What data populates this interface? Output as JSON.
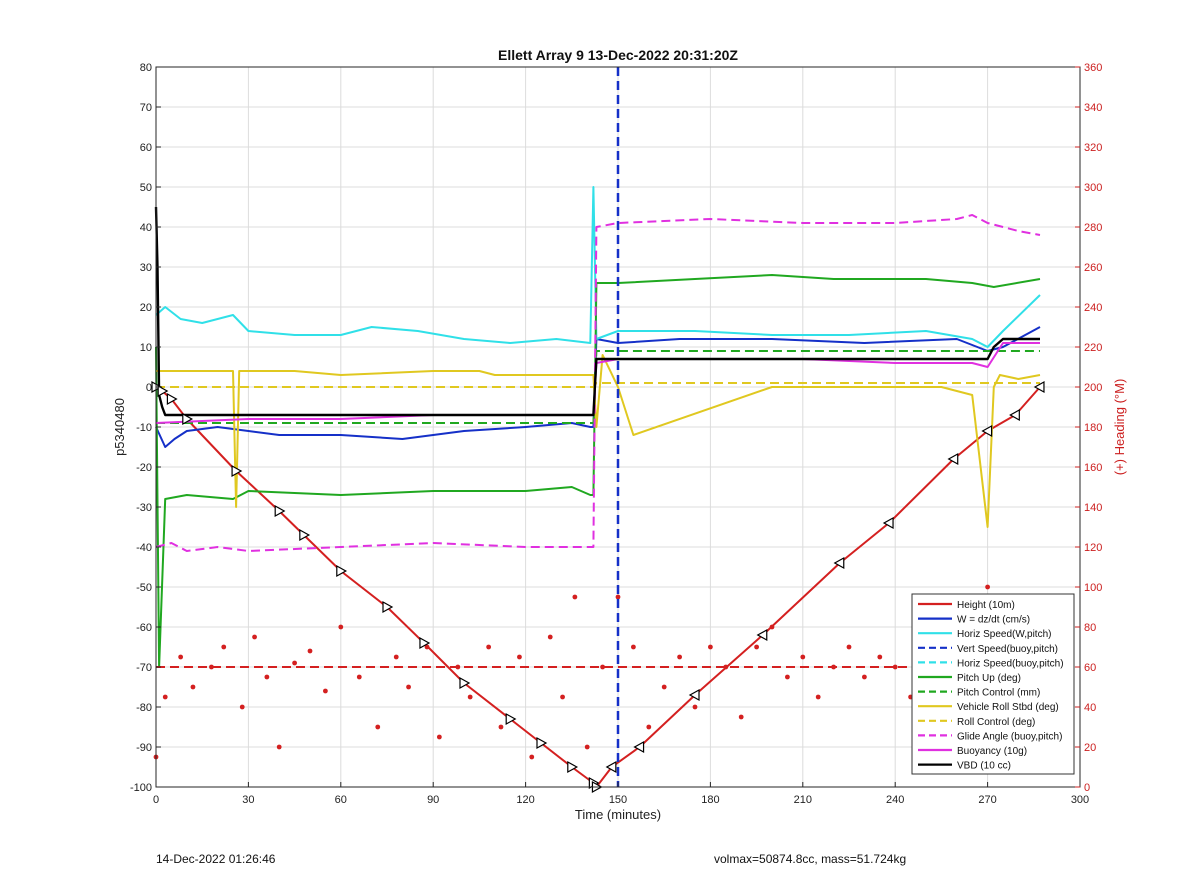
{
  "chart_data": {
    "type": "line",
    "title": "Ellett Array 9 13-Dec-2022 20:31:20Z",
    "xlabel": "Time (minutes)",
    "ylabel_left": "p5340480",
    "ylabel_right": "(+) Heading (°M)",
    "xlim": [
      0,
      300
    ],
    "ylim_left": [
      -100,
      80
    ],
    "ylim_right": [
      0,
      360
    ],
    "x_ticks": [
      "0",
      "30",
      "60",
      "90",
      "120",
      "150",
      "180",
      "210",
      "240",
      "270",
      "300"
    ],
    "y_left_ticks": [
      "80",
      "70",
      "60",
      "50",
      "40",
      "30",
      "20",
      "10",
      "0",
      "-10",
      "-20",
      "-30",
      "-40",
      "-50",
      "-60",
      "-70",
      "-80",
      "-90",
      "-100"
    ],
    "y_right_ticks": [
      "360",
      "340",
      "320",
      "300",
      "280",
      "260",
      "240",
      "220",
      "200",
      "180",
      "160",
      "140",
      "120",
      "100",
      "80",
      "60",
      "40",
      "20",
      "0"
    ],
    "grid": true,
    "legend_position": "bottom-right",
    "colors": {
      "height": "#d42020",
      "w": "#1530c8",
      "horz_speed": "#30e0e8",
      "pitch_up": "#20a820",
      "roll": "#e0c820",
      "glide": "#e030e0",
      "buoyancy": "#e030e0",
      "vbd": "#000000",
      "heading": "#d42020",
      "right_axis": "#cc2020"
    },
    "series": [
      {
        "name": "Height (10m)",
        "style": "line",
        "color": "#d42020",
        "width": 2,
        "x": [
          0,
          2,
          5,
          10,
          26,
          40,
          48,
          60,
          75,
          87,
          100,
          115,
          125,
          135,
          142,
          143,
          148,
          157,
          175,
          197,
          222,
          238,
          259,
          270,
          279,
          287
        ],
        "y": [
          0,
          -1,
          -3,
          -8,
          -21,
          -31,
          -37,
          -46,
          -55,
          -64,
          -74,
          -83,
          -89,
          -95,
          -99,
          -100,
          -95,
          -90,
          -77,
          -62,
          -44,
          -34,
          -18,
          -11,
          -7,
          0
        ]
      },
      {
        "name": "W = dz/dt (cm/s)",
        "style": "line",
        "color": "#1530c8",
        "width": 2,
        "x": [
          0,
          3,
          6,
          10,
          20,
          30,
          40,
          60,
          80,
          100,
          120,
          135,
          141,
          142,
          143,
          150,
          170,
          200,
          230,
          260,
          270,
          275,
          287
        ],
        "y": [
          -10,
          -15,
          -13,
          -11,
          -10,
          -11,
          -12,
          -12,
          -13,
          -11,
          -10,
          -9,
          -10,
          -10,
          12,
          11,
          12,
          12,
          11,
          12,
          9,
          10,
          15
        ]
      },
      {
        "name": "Horiz Speed(W,pitch)",
        "style": "line",
        "color": "#30e0e8",
        "width": 2,
        "x": [
          0,
          3,
          8,
          15,
          25,
          30,
          45,
          60,
          70,
          85,
          100,
          115,
          130,
          141,
          142,
          143,
          150,
          175,
          200,
          225,
          250,
          265,
          270,
          275,
          287
        ],
        "y": [
          18,
          20,
          17,
          16,
          18,
          14,
          13,
          13,
          15,
          14,
          12,
          11,
          12,
          11,
          50,
          12,
          14,
          14,
          13,
          13,
          14,
          12,
          10,
          14,
          23
        ]
      },
      {
        "name": "Pitch Up (deg)",
        "style": "line",
        "color": "#20a820",
        "width": 2,
        "x": [
          0,
          1,
          3,
          10,
          25,
          30,
          60,
          90,
          120,
          135,
          141,
          142,
          143,
          150,
          175,
          200,
          220,
          250,
          265,
          272,
          287
        ],
        "y": [
          10,
          -70,
          -28,
          -27,
          -28,
          -26,
          -27,
          -26,
          -26,
          -25,
          -27,
          -27,
          26,
          26,
          27,
          28,
          27,
          27,
          26,
          25,
          27
        ]
      },
      {
        "name": "Pitch Control (mm)",
        "style": "dashed",
        "color": "#20a820",
        "width": 2,
        "x": [
          0,
          141,
          142,
          143,
          287
        ],
        "y": [
          -9,
          -9,
          -9,
          9,
          9
        ]
      },
      {
        "name": "Vehicle Roll Stbd (deg)",
        "style": "line",
        "color": "#e0c820",
        "width": 2,
        "x": [
          0,
          5,
          25,
          26,
          27,
          45,
          60,
          90,
          105,
          110,
          141,
          142,
          143,
          145,
          150,
          155,
          200,
          222,
          255,
          265,
          270,
          272,
          274,
          280,
          287
        ],
        "y": [
          4,
          4,
          4,
          -30,
          4,
          4,
          3,
          4,
          4,
          3,
          3,
          3,
          -10,
          8,
          0,
          -12,
          0,
          0,
          0,
          -2,
          -35,
          0,
          3,
          2,
          3
        ]
      },
      {
        "name": "Roll Control (deg)",
        "style": "dashed",
        "color": "#e0c820",
        "width": 2,
        "x": [
          0,
          141,
          142,
          143,
          287
        ],
        "y": [
          0,
          0,
          0,
          1,
          1
        ]
      },
      {
        "name": "Glide Angle (buoy,pitch)",
        "style": "dashed",
        "color": "#e030e0",
        "width": 2,
        "x": [
          0,
          5,
          10,
          20,
          30,
          60,
          90,
          120,
          141,
          142,
          143,
          150,
          180,
          210,
          240,
          260,
          265,
          270,
          275,
          280,
          287
        ],
        "y": [
          -40,
          -39,
          -41,
          -40,
          -41,
          -40,
          -39,
          -40,
          -40,
          -40,
          40,
          41,
          42,
          41,
          41,
          42,
          43,
          41,
          40,
          39,
          38
        ]
      },
      {
        "name": "Buoyancy (10g)",
        "style": "line",
        "color": "#e030e0",
        "width": 2,
        "x": [
          0,
          30,
          60,
          90,
          120,
          141,
          142,
          143,
          150,
          180,
          210,
          240,
          265,
          270,
          275,
          287
        ],
        "y": [
          -9,
          -8,
          -8,
          -7,
          -7,
          -7,
          -7,
          6,
          7,
          7,
          7,
          6,
          6,
          5,
          11,
          11
        ]
      },
      {
        "name": "VBD (10 cc)",
        "style": "line",
        "color": "#000000",
        "width": 2.4,
        "x": [
          0,
          0.5,
          1,
          2,
          3,
          5,
          30,
          60,
          90,
          120,
          141,
          142,
          143,
          150,
          180,
          210,
          240,
          270,
          272,
          275,
          287
        ],
        "y": [
          45,
          30,
          -2,
          -5,
          -7,
          -7,
          -7,
          -7,
          -7,
          -7,
          -7,
          -7,
          7,
          7,
          7,
          7,
          7,
          7,
          10,
          12,
          12
        ]
      },
      {
        "name": "Vert Speed(buoy,pitch)",
        "style": "dashed",
        "color": "#1530c8",
        "width": 2.5,
        "x": [
          150
        ],
        "y": [
          0
        ]
      },
      {
        "name": "Horiz Speed(buoy,pitch)",
        "style": "dashed",
        "color": "#30e0e8",
        "width": 2.5,
        "x": [
          150
        ],
        "y": [
          0
        ]
      },
      {
        "name": "Heading",
        "style": "dots",
        "color": "#d42020",
        "axis": "right",
        "x": [
          0,
          3,
          8,
          12,
          18,
          22,
          28,
          32,
          36,
          40,
          45,
          50,
          55,
          60,
          66,
          72,
          78,
          82,
          88,
          92,
          98,
          102,
          108,
          112,
          118,
          122,
          128,
          132,
          136,
          140,
          145,
          150,
          155,
          160,
          165,
          170,
          175,
          180,
          185,
          190,
          195,
          200,
          205,
          210,
          215,
          220,
          225,
          230,
          235,
          240,
          245,
          250,
          255,
          260,
          265,
          270,
          275,
          280,
          285
        ],
        "y": [
          15,
          45,
          65,
          50,
          60,
          70,
          40,
          75,
          55,
          20,
          62,
          68,
          48,
          80,
          55,
          30,
          65,
          50,
          70,
          25,
          60,
          45,
          70,
          30,
          65,
          15,
          75,
          45,
          95,
          20,
          60,
          95,
          70,
          30,
          50,
          65,
          40,
          70,
          60,
          35,
          70,
          80,
          55,
          65,
          45,
          60,
          70,
          55,
          65,
          60,
          45,
          70,
          60,
          55,
          70,
          100,
          65,
          50,
          60
        ]
      },
      {
        "name": "Heading mean",
        "style": "dashed",
        "color": "#d42020",
        "axis": "right",
        "x": [
          0,
          287
        ],
        "y": [
          60,
          60
        ]
      }
    ],
    "legend": [
      {
        "label": "Height (10m)",
        "color": "#d42020",
        "style": "solid"
      },
      {
        "label": "W = dz/dt (cm/s)",
        "color": "#1530c8",
        "style": "solid"
      },
      {
        "label": "Horiz Speed(W,pitch)",
        "color": "#30e0e8",
        "style": "solid"
      },
      {
        "label": "Vert Speed(buoy,pitch)",
        "color": "#1530c8",
        "style": "dashed"
      },
      {
        "label": "Horiz Speed(buoy,pitch)",
        "color": "#30e0e8",
        "style": "dashed"
      },
      {
        "label": "Pitch Up (deg)",
        "color": "#20a820",
        "style": "solid"
      },
      {
        "label": "Pitch Control (mm)",
        "color": "#20a820",
        "style": "dashed"
      },
      {
        "label": "Vehicle Roll Stbd (deg)",
        "color": "#e0c820",
        "style": "solid"
      },
      {
        "label": "Roll Control (deg)",
        "color": "#e0c820",
        "style": "dashed"
      },
      {
        "label": "Glide Angle (buoy,pitch)",
        "color": "#e030e0",
        "style": "dashed"
      },
      {
        "label": "Buoyancy (10g)",
        "color": "#e030e0",
        "style": "solid"
      },
      {
        "label": "VBD (10 cc)",
        "color": "#000000",
        "style": "solid"
      }
    ],
    "vertical_marker_x": 150,
    "apogee_x": 143
  },
  "footer": {
    "left_text": "14-Dec-2022 01:26:46",
    "right_text": "volmax=50874.8cc, mass=51.724kg"
  }
}
